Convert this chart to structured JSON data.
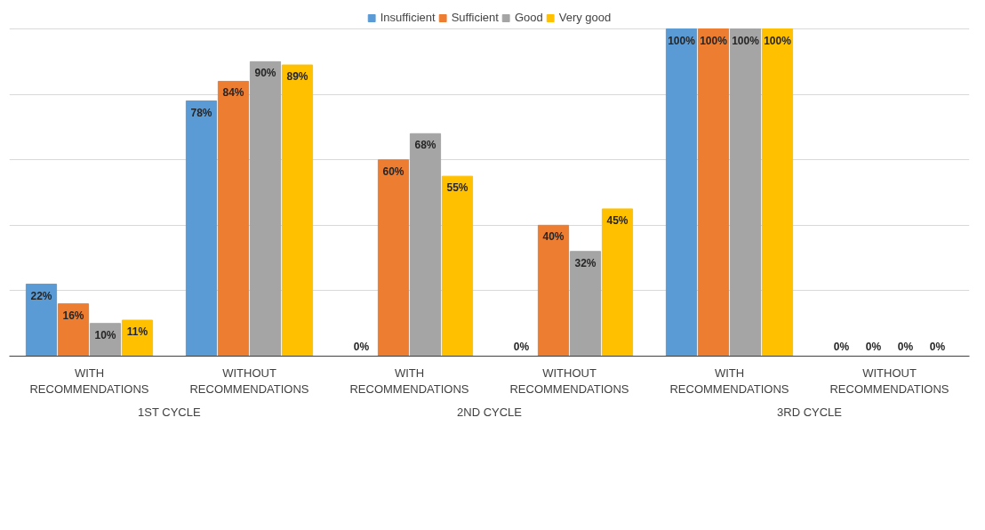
{
  "chart_data": {
    "type": "bar",
    "categories": [
      "WITH RECOMMENDATIONS",
      "WITHOUT RECOMMENDATIONS",
      "WITH RECOMMENDATIONS",
      "WITHOUT RECOMMENDATIONS",
      "WITH RECOMMENDATIONS",
      "WITHOUT RECOMMENDATIONS"
    ],
    "annotations": [
      "1ST CYCLE",
      "2ND CYCLE",
      "3RD CYCLE"
    ],
    "series": [
      {
        "name": "Insufficient",
        "color": "#5b9bd5",
        "values": [
          22,
          78,
          0,
          0,
          100,
          0
        ],
        "value_labels": [
          "22%",
          "78%",
          "0%",
          "0%",
          "100%",
          "0%"
        ]
      },
      {
        "name": "Sufficient",
        "color": "#ed7d31",
        "values": [
          16,
          84,
          60,
          40,
          100,
          0
        ],
        "value_labels": [
          "16%",
          "84%",
          "60%",
          "40%",
          "100%",
          "0%"
        ]
      },
      {
        "name": "Good",
        "color": "#a5a5a5",
        "values": [
          10,
          90,
          68,
          32,
          100,
          0
        ],
        "value_labels": [
          "10%",
          "90%",
          "68%",
          "32%",
          "100%",
          "0%"
        ]
      },
      {
        "name": "Very good",
        "color": "#ffc000",
        "values": [
          11,
          89,
          55,
          45,
          100,
          0
        ],
        "value_labels": [
          "11%",
          "89%",
          "55%",
          "45%",
          "100%",
          "0%"
        ]
      }
    ],
    "yticks": [
      {
        "value": 0,
        "label": null
      },
      {
        "value": 20,
        "label": null
      },
      {
        "value": 40,
        "label": null
      },
      {
        "value": 60,
        "label": null
      },
      {
        "value": 80,
        "label": null
      },
      {
        "value": 100,
        "label": null
      }
    ],
    "tick_labels": "x",
    "grid": "y",
    "legend": "top"
  }
}
